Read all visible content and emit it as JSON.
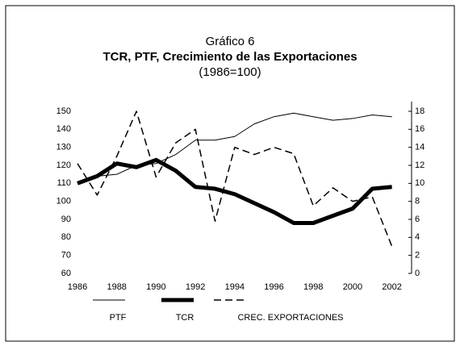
{
  "chart_data": {
    "type": "line",
    "title": "Gráfico 6",
    "subtitle": "TCR, PTF, Crecimiento de las Exportaciones",
    "note": "(1986=100)",
    "x": [
      1986,
      1987,
      1988,
      1989,
      1990,
      1991,
      1992,
      1993,
      1994,
      1995,
      1996,
      1997,
      1998,
      1999,
      2000,
      2001,
      2002
    ],
    "xlim": [
      1986,
      2003
    ],
    "xticks": [
      1986,
      1988,
      1990,
      1992,
      1994,
      1996,
      1998,
      2000,
      2002
    ],
    "ylim": [
      60,
      150
    ],
    "yticks": [
      60,
      70,
      80,
      90,
      100,
      110,
      120,
      130,
      140,
      150
    ],
    "y2lim": [
      0,
      18
    ],
    "y2ticks": [
      0,
      2,
      4,
      6,
      8,
      10,
      12,
      14,
      16,
      18
    ],
    "series": [
      {
        "name": "PTF",
        "color": "#000000",
        "width": 1,
        "dash": false,
        "values": [
          110,
          114,
          115,
          120,
          121,
          126,
          134,
          134,
          136,
          143,
          147,
          149,
          147,
          145,
          146,
          148,
          147
        ]
      },
      {
        "name": "TCR",
        "color": "#000000",
        "width": 5,
        "dash": false,
        "values": [
          110,
          114,
          121,
          119,
          123,
          117,
          108,
          107,
          104,
          99,
          94,
          88,
          88,
          92,
          96,
          107,
          108
        ]
      },
      {
        "name": "CREC. EXPORTACIONES",
        "color": "#000000",
        "width": 1.5,
        "dash": true,
        "axis": "y2",
        "values": [
          12.2,
          8.7,
          13,
          18,
          10.7,
          14.5,
          16,
          5.8,
          14,
          13.2,
          14,
          13.3,
          7.5,
          9.5,
          8,
          8.5,
          3
        ]
      }
    ]
  }
}
